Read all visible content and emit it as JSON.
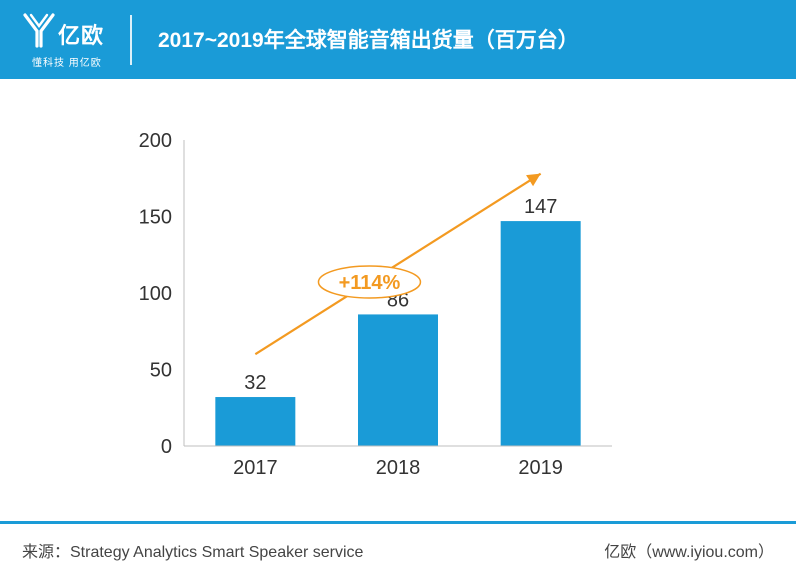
{
  "brand": {
    "name": "亿欧",
    "slogan": "懂科技 用亿欧",
    "accent": "#1a9bd7"
  },
  "title": "2017~2019年全球智能音箱出货量（百万台）",
  "chart_data": {
    "type": "bar",
    "title": "2017~2019年全球智能音箱出货量（百万台）",
    "categories": [
      "2017",
      "2018",
      "2019"
    ],
    "values": [
      32,
      86,
      147
    ],
    "ylim": [
      0,
      200
    ],
    "yticks": [
      0,
      50,
      100,
      150,
      200
    ],
    "data_labels": [
      "32",
      "86",
      "147"
    ],
    "bar_color": "#1a9bd7",
    "grid": false,
    "annotation": {
      "text": "+114%",
      "color": "#f39a21",
      "arrow_from": {
        "x": "2017",
        "y": 60
      },
      "arrow_to": {
        "x": "2019",
        "y": 178
      }
    }
  },
  "footer": {
    "source": "来源：Strategy Analytics Smart Speaker service",
    "site": "亿欧（www.iyiou.com）"
  }
}
